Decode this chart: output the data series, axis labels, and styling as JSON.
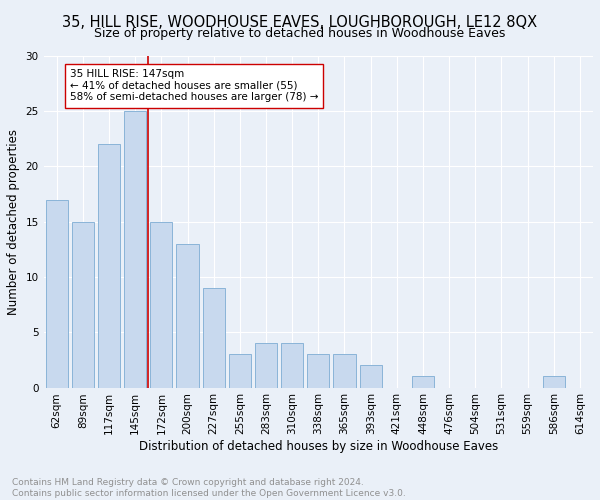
{
  "title": "35, HILL RISE, WOODHOUSE EAVES, LOUGHBOROUGH, LE12 8QX",
  "subtitle": "Size of property relative to detached houses in Woodhouse Eaves",
  "xlabel": "Distribution of detached houses by size in Woodhouse Eaves",
  "ylabel": "Number of detached properties",
  "bar_labels": [
    "62sqm",
    "89sqm",
    "117sqm",
    "145sqm",
    "172sqm",
    "200sqm",
    "227sqm",
    "255sqm",
    "283sqm",
    "310sqm",
    "338sqm",
    "365sqm",
    "393sqm",
    "421sqm",
    "448sqm",
    "476sqm",
    "504sqm",
    "531sqm",
    "559sqm",
    "586sqm",
    "614sqm"
  ],
  "bar_values": [
    17,
    15,
    22,
    25,
    15,
    13,
    9,
    3,
    4,
    4,
    3,
    3,
    2,
    0,
    1,
    0,
    0,
    0,
    0,
    1,
    0
  ],
  "bar_color": "#c8d9ee",
  "bar_edge_color": "#8ab4d8",
  "vline_color": "#cc0000",
  "annotation_title": "35 HILL RISE: 147sqm",
  "annotation_line1": "← 41% of detached houses are smaller (55)",
  "annotation_line2": "58% of semi-detached houses are larger (78) →",
  "annotation_box_color": "#ffffff",
  "annotation_box_edge": "#cc0000",
  "ylim": [
    0,
    30
  ],
  "yticks": [
    0,
    5,
    10,
    15,
    20,
    25,
    30
  ],
  "footnote": "Contains HM Land Registry data © Crown copyright and database right 2024.\nContains public sector information licensed under the Open Government Licence v3.0.",
  "bg_color": "#eaf0f8",
  "grid_color": "#ffffff",
  "title_fontsize": 10.5,
  "subtitle_fontsize": 9,
  "axis_label_fontsize": 8.5,
  "tick_fontsize": 7.5,
  "annotation_fontsize": 7.5,
  "footnote_fontsize": 6.5
}
